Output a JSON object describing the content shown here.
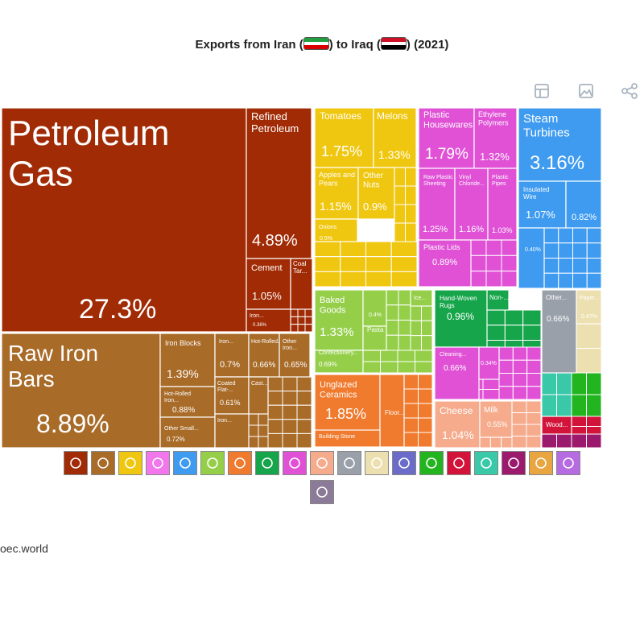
{
  "title": {
    "prefix": "Exports from Iran (",
    "middle": ") to Iraq (",
    "suffix": ") (2021)"
  },
  "flags": {
    "iran": [
      "#239f40",
      "#ffffff",
      "#da0000"
    ],
    "iraq": [
      "#ce1126",
      "#ffffff",
      "#000000"
    ]
  },
  "toolbar": {
    "icons": [
      "table-icon",
      "image-icon",
      "share-icon"
    ],
    "color": "#aab4bf"
  },
  "chart_data": {
    "type": "treemap",
    "source": "oec.world",
    "tiles": [
      {
        "label": "Petroleum Gas",
        "value": "27.3%"
      },
      {
        "label": "Refined Petroleum",
        "value": "4.89%"
      },
      {
        "label": "Cement",
        "value": "1.05%"
      },
      {
        "label": "Coal Tar...",
        "value": ""
      },
      {
        "label": "Iron...",
        "value": "0.36%"
      },
      {
        "label": "Raw Iron Bars",
        "value": "8.89%"
      },
      {
        "label": "Iron Blocks",
        "value": "1.39%"
      },
      {
        "label": "Hot-Rolled Iron...",
        "value": "0.88%"
      },
      {
        "label": "Other Small...",
        "value": "0.72%"
      },
      {
        "label": "Iron...",
        "value": "0.7%"
      },
      {
        "label": "Hot-Rolled...",
        "value": "0.66%"
      },
      {
        "label": "Other Iron...",
        "value": "0.65%"
      },
      {
        "label": "Coated Flat-...",
        "value": "0.61%"
      },
      {
        "label": "Cast...",
        "value": ""
      },
      {
        "label": "Iron...",
        "value": ""
      },
      {
        "label": "Tomatoes",
        "value": "1.75%"
      },
      {
        "label": "Melons",
        "value": "1.33%"
      },
      {
        "label": "Apples and Pears",
        "value": "1.15%"
      },
      {
        "label": "Other Nuts",
        "value": "0.9%"
      },
      {
        "label": "Onions",
        "value": "0.5%"
      },
      {
        "label": "Plastic Housewares",
        "value": "1.79%"
      },
      {
        "label": "Ethylene Polymers",
        "value": "1.32%"
      },
      {
        "label": "Raw Plastic Sheeting",
        "value": "1.25%"
      },
      {
        "label": "Vinyl Chloride...",
        "value": "1.16%"
      },
      {
        "label": "Plastic Pipes",
        "value": "1.03%"
      },
      {
        "label": "Plastic Lids",
        "value": "0.89%"
      },
      {
        "label": "Steam Turbines",
        "value": "3.16%"
      },
      {
        "label": "Insulated Wire",
        "value": "1.07%"
      },
      {
        "label": "",
        "value": "0.82%"
      },
      {
        "label": "",
        "value": "0.40%"
      },
      {
        "label": "Baked Goods",
        "value": "1.33%"
      },
      {
        "label": "",
        "value": "0.4%"
      },
      {
        "label": "Pasta",
        "value": ""
      },
      {
        "label": "Ice...",
        "value": ""
      },
      {
        "label": "Confectionery...",
        "value": "0.69%"
      },
      {
        "label": "Hand-Woven Rugs",
        "value": "0.96%"
      },
      {
        "label": "Non-...",
        "value": ""
      },
      {
        "label": "Other...",
        "value": "0.66%"
      },
      {
        "label": "Paper...",
        "value": "0.47%"
      },
      {
        "label": "Cleaning...",
        "value": "0.66%"
      },
      {
        "label": "",
        "value": "0.34%"
      },
      {
        "label": "Unglazed Ceramics",
        "value": "1.85%"
      },
      {
        "label": "Floor...",
        "value": ""
      },
      {
        "label": "Building Stone",
        "value": ""
      },
      {
        "label": "Cheese",
        "value": "1.04%"
      },
      {
        "label": "Milk",
        "value": "0.55%"
      },
      {
        "label": "Wood...",
        "value": ""
      }
    ],
    "categories": [
      {
        "name": "mining-icon",
        "color": "#a12b05"
      },
      {
        "name": "anvil-icon",
        "color": "#a86b28"
      },
      {
        "name": "fruit-icon",
        "color": "#f0c710"
      },
      {
        "name": "recycle-icon",
        "color": "#f277ec"
      },
      {
        "name": "gear-icon",
        "color": "#3e9bf0"
      },
      {
        "name": "wheat-icon",
        "color": "#95cf4a"
      },
      {
        "name": "chemistry-icon",
        "color": "#f07a2d"
      },
      {
        "name": "shirt-icon",
        "color": "#16a54a"
      },
      {
        "name": "flask-icon",
        "color": "#e051d6"
      },
      {
        "name": "animal-icon",
        "color": "#f5ab8c"
      },
      {
        "name": "box-icon",
        "color": "#9aa0aa"
      },
      {
        "name": "paper-icon",
        "color": "#ede0b0"
      },
      {
        "name": "road-icon",
        "color": "#6b6bc9"
      },
      {
        "name": "shoe-icon",
        "color": "#22b51f"
      },
      {
        "name": "vehicle-icon",
        "color": "#d3143a"
      },
      {
        "name": "leather-icon",
        "color": "#39c8a8"
      },
      {
        "name": "gauge-icon",
        "color": "#9b1a6e"
      },
      {
        "name": "misc-icon",
        "color": "#e8a540"
      },
      {
        "name": "gem-icon",
        "color": "#b66be0"
      },
      {
        "name": "art-icon",
        "color": "#8c7b98"
      }
    ]
  }
}
